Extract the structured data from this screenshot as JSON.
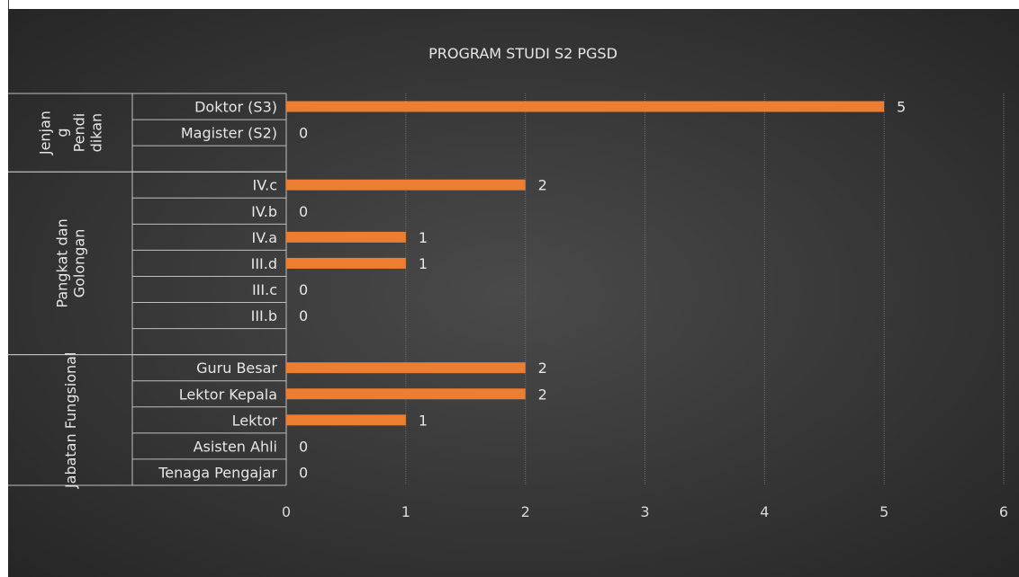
{
  "chart_data": {
    "type": "bar",
    "orientation": "horizontal",
    "title": "PROGRAM STUDI S2 PGSD",
    "xlim": [
      0,
      6
    ],
    "xticks": [
      0,
      1,
      2,
      3,
      4,
      5,
      6
    ],
    "grid": true,
    "bar_color": "#ED7D31",
    "groups": [
      {
        "label_lines": [
          "Jenjan",
          "g",
          "Pendi",
          "dikan"
        ],
        "categories": [
          "Doktor (S3)",
          "Magister (S2)"
        ],
        "values": [
          5,
          0
        ]
      },
      {
        "label_lines": [
          "Pangkat dan",
          "Golongan"
        ],
        "categories": [
          "IV.c",
          "IV.b",
          "IV.a",
          "III.d",
          "III.c",
          "III.b"
        ],
        "values": [
          2,
          0,
          1,
          1,
          0,
          0
        ]
      },
      {
        "label_lines": [
          "Jabatan Fungsional"
        ],
        "categories": [
          "Guru Besar",
          "Lektor Kepala",
          "Lektor",
          "Asisten Ahli",
          "Tenaga Pengajar"
        ],
        "values": [
          2,
          2,
          1,
          0,
          0
        ]
      }
    ]
  }
}
